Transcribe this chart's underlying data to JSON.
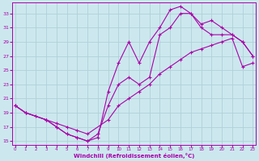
{
  "bg_color": "#cce8ee",
  "line_color": "#aa00aa",
  "grid_color": "#b0d0d8",
  "xlabel": "Windchill (Refroidissement éolien,°C)",
  "xlim": [
    -0.3,
    23.3
  ],
  "ylim": [
    14.5,
    34.5
  ],
  "yticks": [
    15,
    17,
    19,
    21,
    23,
    25,
    27,
    29,
    31,
    33
  ],
  "xticks": [
    0,
    1,
    2,
    3,
    4,
    5,
    6,
    7,
    8,
    9,
    10,
    11,
    12,
    13,
    14,
    15,
    16,
    17,
    18,
    19,
    20,
    21,
    22,
    23
  ],
  "curve_top_x": [
    0,
    1,
    3,
    4,
    5,
    6,
    7,
    8,
    9,
    10,
    11,
    12,
    13,
    14,
    15,
    16,
    17,
    18,
    19,
    20,
    21,
    22,
    23
  ],
  "curve_top_y": [
    20,
    19,
    18,
    17,
    16,
    15.5,
    15,
    15.5,
    22,
    26,
    29,
    26,
    29,
    31,
    33.5,
    34,
    33,
    31.5,
    32,
    31,
    30,
    29,
    27
  ],
  "curve_mid_x": [
    0,
    1,
    3,
    4,
    5,
    6,
    7,
    8,
    9,
    10,
    11,
    12,
    13,
    14,
    15,
    16,
    17,
    18,
    19,
    20,
    21,
    22,
    23
  ],
  "curve_mid_y": [
    20,
    19,
    18,
    17,
    16,
    15.5,
    15,
    16,
    20,
    23,
    24,
    23,
    24,
    30,
    31,
    33,
    33,
    31,
    30,
    30,
    30,
    29,
    27
  ],
  "curve_bot_x": [
    0,
    1,
    2,
    3,
    4,
    5,
    6,
    7,
    9,
    10,
    11,
    12,
    13,
    14,
    15,
    16,
    17,
    18,
    19,
    20,
    21,
    22,
    23
  ],
  "curve_bot_y": [
    20,
    19,
    18.5,
    18,
    17.5,
    17,
    16.5,
    16,
    18,
    20,
    21,
    22,
    23,
    24.5,
    25.5,
    26.5,
    27.5,
    28,
    28.5,
    29,
    29.5,
    25.5,
    26
  ]
}
